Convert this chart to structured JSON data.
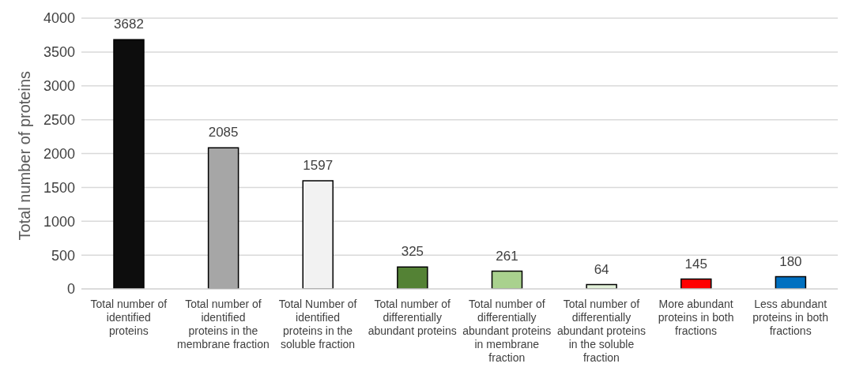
{
  "chart_data": {
    "type": "bar",
    "ylabel": "Total number of proteins",
    "categories": [
      "Total number of identified proteins",
      "Total number of identified proteins in the membrane fraction",
      "Total Number of identified proteins in the soluble fraction",
      "Total number of differentially abundant proteins",
      "Total number of differentially abundant proteins in membrane fraction",
      "Total number of differentially abundant proteins in the soluble fraction",
      "More abundant proteins in both fractions",
      "Less abundant proteins in both fractions"
    ],
    "values": [
      3682,
      2085,
      1597,
      325,
      261,
      64,
      145,
      180
    ],
    "colors": [
      "#0d0d0d",
      "#a6a6a6",
      "#f2f2f2",
      "#548235",
      "#a9d18e",
      "#e2f0d9",
      "#ff0000",
      "#0070c0"
    ],
    "ylim": [
      0,
      4000
    ],
    "yticks": [
      0,
      500,
      1000,
      1500,
      2000,
      2500,
      3000,
      3500,
      4000
    ],
    "grid": "y",
    "data_labels": true
  }
}
